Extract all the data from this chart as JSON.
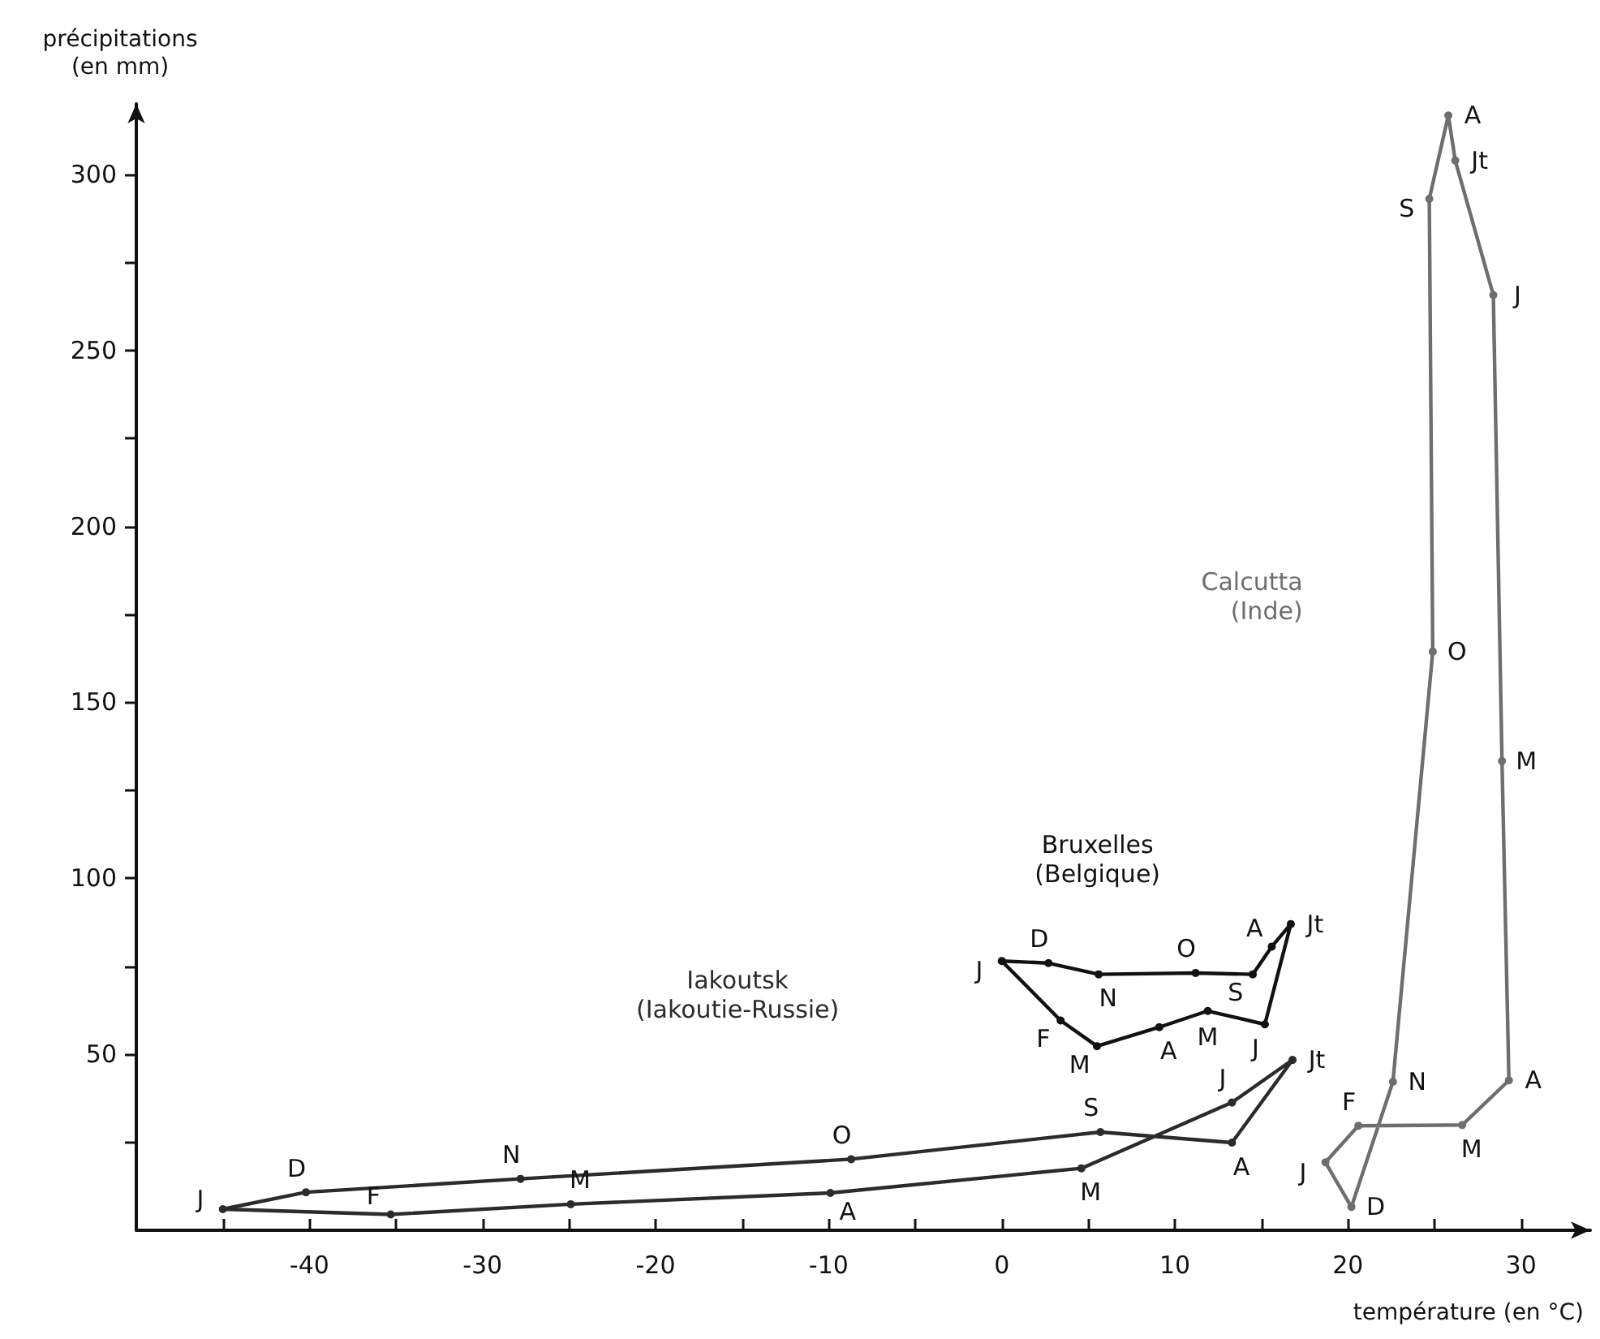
{
  "chart_data": {
    "type": "line",
    "xlabel": "température (en °C)",
    "ylabel": "précipitations\n(en mm)",
    "xlim": [
      -50,
      34
    ],
    "ylim": [
      0,
      320
    ],
    "xticks": [
      {
        "value": -45,
        "label": null
      },
      -40,
      {
        "value": -35,
        "label": null
      },
      -30,
      {
        "value": -25,
        "label": null
      },
      -20,
      {
        "value": -15,
        "label": null
      },
      -10,
      {
        "value": -5,
        "label": null
      },
      0,
      {
        "value": 5,
        "label": null
      },
      10,
      {
        "value": 15,
        "label": null
      },
      20,
      {
        "value": 25,
        "label": null
      },
      30
    ],
    "yticks": [
      {
        "value": 25,
        "label": null
      },
      50,
      {
        "value": 75,
        "label": null
      },
      100,
      {
        "value": 125,
        "label": null
      },
      150,
      {
        "value": 175,
        "label": null
      },
      200,
      {
        "value": 225,
        "label": null
      },
      250,
      {
        "value": 275,
        "label": null
      },
      300
    ],
    "grid": false,
    "legend": false,
    "marker": "circle",
    "line_style": "solid",
    "series": [
      {
        "name": "Iakoutsk\n(Iakoutie-Russie)",
        "color": "#2b2b2b",
        "x": [
          -45,
          -35.3,
          -24.9,
          -9.9,
          4.6,
          13.3,
          16.8,
          13.3,
          5.7,
          -8.7,
          -27.8,
          -40.2
        ],
        "values": [
          6,
          4.5,
          7.4,
          10.6,
          17.6,
          36.3,
          48.4,
          24.9,
          27.9,
          20.2,
          14.6,
          10.8
        ]
      },
      {
        "name": "Bruxelles\n(Belgique)",
        "color": "#111111",
        "x": [
          0,
          3.4,
          5.5,
          9.1,
          11.9,
          15.2,
          16.7,
          15.6,
          14.5,
          11.2,
          5.6,
          2.7
        ],
        "values": [
          76.5,
          59.6,
          52.3,
          57.7,
          62.3,
          58.5,
          87,
          80.6,
          72.7,
          73.1,
          72.7,
          75.9
        ]
      },
      {
        "name": "Calcutta\n(Inde)",
        "color": "#6e6e6e",
        "x": [
          18.7,
          20.6,
          26.6,
          29.3,
          28.9,
          28.4,
          26.2,
          25.8,
          24.7,
          24.9,
          22.6,
          20.2
        ],
        "values": [
          19.3,
          29.7,
          29.9,
          42.6,
          133.3,
          265.7,
          303.9,
          316.7,
          293,
          164.4,
          42.2,
          6.6
        ]
      }
    ],
    "annotations": [
      {
        "text": "J",
        "x": -45,
        "y": 6
      },
      {
        "text": "F",
        "x": -35.3,
        "y": 4.5
      },
      {
        "text": "M",
        "x": -24.9,
        "y": 7.4
      },
      {
        "text": "A",
        "x": -9.9,
        "y": 10.6
      },
      {
        "text": "M",
        "x": 4.6,
        "y": 17.6
      },
      {
        "text": "J",
        "x": 13.3,
        "y": 36.3
      },
      {
        "text": "Jt",
        "x": 16.8,
        "y": 48.4
      },
      {
        "text": "A",
        "x": 13.3,
        "y": 24.9
      },
      {
        "text": "S",
        "x": 5.7,
        "y": 27.9
      },
      {
        "text": "O",
        "x": -8.7,
        "y": 20.2
      },
      {
        "text": "N",
        "x": -27.8,
        "y": 14.6
      },
      {
        "text": "D",
        "x": -40.2,
        "y": 10.8
      },
      {
        "text": "J",
        "x": 0,
        "y": 76.5
      },
      {
        "text": "F",
        "x": 3.4,
        "y": 59.6
      },
      {
        "text": "M",
        "x": 5.5,
        "y": 52.3
      },
      {
        "text": "A",
        "x": 9.1,
        "y": 57.7
      },
      {
        "text": "M",
        "x": 11.9,
        "y": 62.3
      },
      {
        "text": "J",
        "x": 15.2,
        "y": 58.5
      },
      {
        "text": "Jt",
        "x": 16.7,
        "y": 87
      },
      {
        "text": "A",
        "x": 15.6,
        "y": 80.6
      },
      {
        "text": "S",
        "x": 14.5,
        "y": 72.7
      },
      {
        "text": "O",
        "x": 11.2,
        "y": 73.1
      },
      {
        "text": "N",
        "x": 5.6,
        "y": 72.7
      },
      {
        "text": "D",
        "x": 2.7,
        "y": 75.9
      },
      {
        "text": "J",
        "x": 18.7,
        "y": 19.3
      },
      {
        "text": "F",
        "x": 20.6,
        "y": 29.7
      },
      {
        "text": "M",
        "x": 26.6,
        "y": 29.9
      },
      {
        "text": "A",
        "x": 29.3,
        "y": 42.6
      },
      {
        "text": "M",
        "x": 28.9,
        "y": 133.3
      },
      {
        "text": "J",
        "x": 28.4,
        "y": 265.7
      },
      {
        "text": "Jt",
        "x": 26.2,
        "y": 303.9
      },
      {
        "text": "A",
        "x": 25.8,
        "y": 316.7
      },
      {
        "text": "S",
        "x": 24.7,
        "y": 293
      },
      {
        "text": "O",
        "x": 24.9,
        "y": 164.4
      },
      {
        "text": "N",
        "x": 22.6,
        "y": 42.2
      },
      {
        "text": "D",
        "x": 20.2,
        "y": 6.6
      }
    ]
  }
}
